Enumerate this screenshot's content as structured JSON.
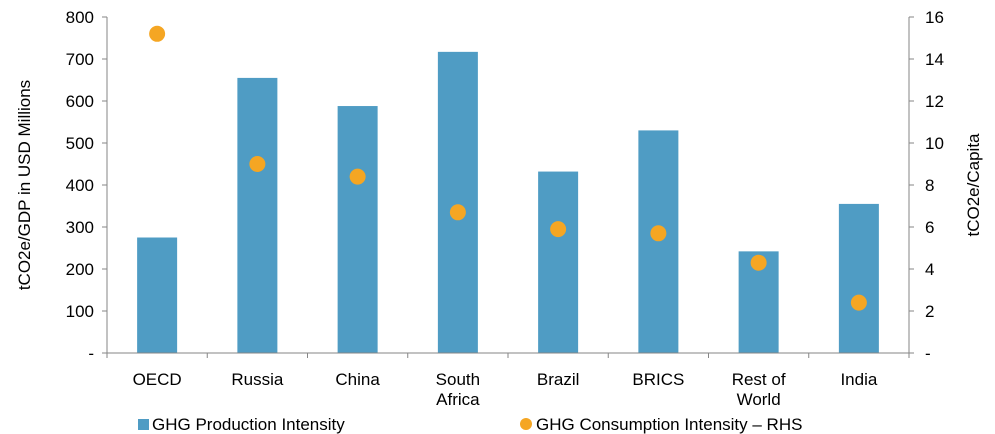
{
  "chart_data": {
    "type": "bar",
    "title": "",
    "categories": [
      [
        "OECD"
      ],
      [
        "Russia"
      ],
      [
        "China"
      ],
      [
        "South",
        "Africa"
      ],
      [
        "Brazil"
      ],
      [
        "BRICS"
      ],
      [
        "Rest of",
        "World"
      ],
      [
        "India"
      ]
    ],
    "series": [
      {
        "name": "GHG Production Intensity",
        "type": "bar",
        "axis": "left",
        "color": "#4f9cc4",
        "values": [
          275,
          655,
          588,
          717,
          432,
          530,
          242,
          355
        ]
      },
      {
        "name": "GHG Consumption Intensity – RHS",
        "type": "scatter",
        "axis": "right",
        "color": "#f5a623",
        "values": [
          15.2,
          9.0,
          8.4,
          6.7,
          5.9,
          5.7,
          4.3,
          2.4
        ]
      }
    ],
    "ylabel_left": "tCO2e/GDP in USD Millions",
    "ylabel_right": "tCO2e/Capita",
    "ylim_left": [
      0,
      800
    ],
    "ylim_right": [
      0,
      16
    ],
    "yticks_left": [
      "-",
      "100",
      "200",
      "300",
      "400",
      "500",
      "600",
      "700",
      "800"
    ],
    "yticks_right": [
      "-",
      "2",
      "4",
      "6",
      "8",
      "10",
      "12",
      "14",
      "16"
    ],
    "grid": false,
    "legend_position": "bottom"
  }
}
